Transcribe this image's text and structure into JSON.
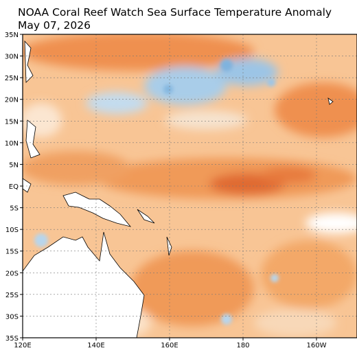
{
  "header": {
    "title": "NOAA Coral Reef Watch Sea Surface Temperature Anomaly",
    "date": "May 07, 2026"
  },
  "map": {
    "lat_labels": [
      "35N",
      "30N",
      "25N",
      "20N",
      "15N",
      "10N",
      "5N",
      "EQ",
      "5S",
      "10S",
      "15S",
      "20S",
      "25S",
      "30S",
      "35S"
    ],
    "lon_labels": [
      "120E",
      "140E",
      "160E",
      "180",
      "160W"
    ]
  }
}
